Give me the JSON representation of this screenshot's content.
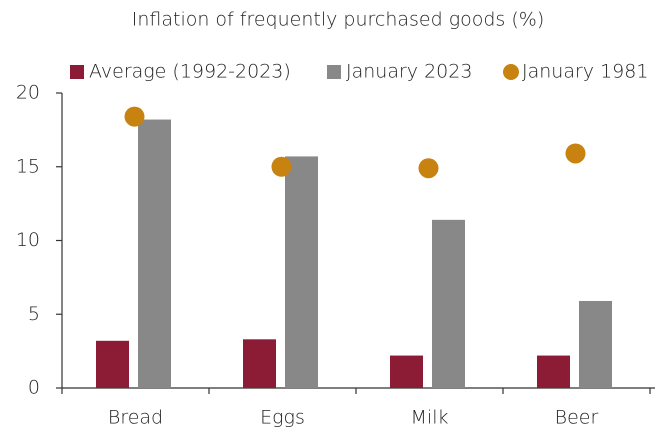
{
  "chart_data": {
    "type": "bar",
    "title": "Inflation of frequently purchased goods (%)",
    "categories": [
      "Bread",
      "Eggs",
      "Milk",
      "Beer"
    ],
    "series": [
      {
        "name": "Average (1992-2023)",
        "type": "bar",
        "color": "#8c1b36",
        "values": [
          3.2,
          3.3,
          2.2,
          2.2
        ]
      },
      {
        "name": "January 2023",
        "type": "bar",
        "color": "#888888",
        "values": [
          18.2,
          15.7,
          11.4,
          5.9
        ]
      },
      {
        "name": "January 1981",
        "type": "scatter",
        "color": "#c8820f",
        "values": [
          18.4,
          15.0,
          14.9,
          15.9
        ]
      }
    ],
    "ylim": [
      0,
      20
    ],
    "yticks": [
      0,
      5,
      10,
      15,
      20
    ],
    "grid": false,
    "legend": "top"
  }
}
